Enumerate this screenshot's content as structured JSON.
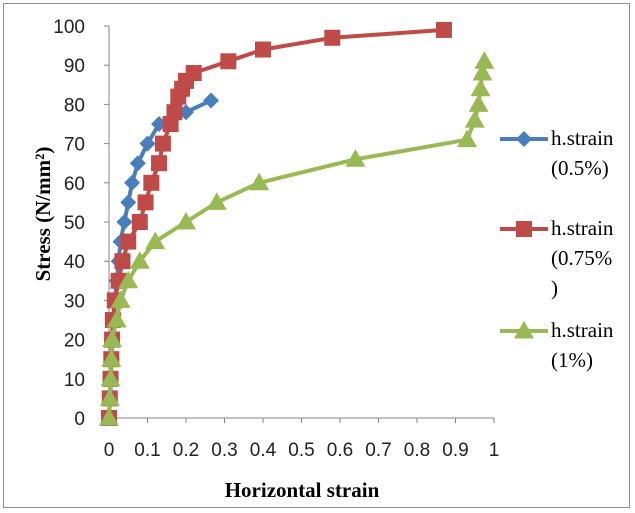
{
  "chart_data": {
    "type": "line",
    "title": "",
    "xlabel": "Horizontal strain",
    "ylabel": "Stress (N/mm²)",
    "xlim": [
      0,
      1
    ],
    "ylim": [
      0,
      100
    ],
    "xticks": [
      "0",
      "0.1",
      "0.2",
      "0.3",
      "0.4",
      "0.5",
      "0.6",
      "0.7",
      "0.8",
      "0.9",
      "1"
    ],
    "yticks": [
      "0",
      "10",
      "20",
      "30",
      "40",
      "50",
      "60",
      "70",
      "80",
      "90",
      "100"
    ],
    "grid": false,
    "legend": "right",
    "series": [
      {
        "name": "h.strain (0.5%)",
        "legend_lines": [
          "h.strain",
          "(0.5%)"
        ],
        "color": "#4a7ebb",
        "marker": "diamond",
        "points": [
          [
            0,
            0
          ],
          [
            0.003,
            5
          ],
          [
            0.005,
            10
          ],
          [
            0.007,
            15
          ],
          [
            0.009,
            20
          ],
          [
            0.012,
            25
          ],
          [
            0.015,
            30
          ],
          [
            0.02,
            35
          ],
          [
            0.025,
            40
          ],
          [
            0.03,
            45
          ],
          [
            0.04,
            50
          ],
          [
            0.05,
            55
          ],
          [
            0.06,
            60
          ],
          [
            0.075,
            65
          ],
          [
            0.1,
            70
          ],
          [
            0.13,
            75
          ],
          [
            0.2,
            78
          ],
          [
            0.265,
            81
          ]
        ]
      },
      {
        "name": "h.strain (0.75%)",
        "legend_lines": [
          "h.strain",
          "(0.75%",
          ")"
        ],
        "color": "#be4b48",
        "marker": "square",
        "points": [
          [
            0,
            0
          ],
          [
            0.002,
            5
          ],
          [
            0.004,
            10
          ],
          [
            0.006,
            15
          ],
          [
            0.008,
            20
          ],
          [
            0.01,
            25
          ],
          [
            0.015,
            30
          ],
          [
            0.025,
            35
          ],
          [
            0.035,
            40
          ],
          [
            0.05,
            45
          ],
          [
            0.08,
            50
          ],
          [
            0.095,
            55
          ],
          [
            0.11,
            60
          ],
          [
            0.13,
            65
          ],
          [
            0.14,
            70
          ],
          [
            0.16,
            75
          ],
          [
            0.17,
            78
          ],
          [
            0.18,
            82
          ],
          [
            0.19,
            84
          ],
          [
            0.2,
            86
          ],
          [
            0.22,
            88
          ],
          [
            0.31,
            91
          ],
          [
            0.4,
            94
          ],
          [
            0.58,
            97
          ],
          [
            0.87,
            99
          ]
        ]
      },
      {
        "name": "h.strain (1%)",
        "legend_lines": [
          "h.strain",
          "(1%)"
        ],
        "color": "#98b954",
        "marker": "triangle",
        "points": [
          [
            0,
            0
          ],
          [
            0.002,
            5
          ],
          [
            0.004,
            10
          ],
          [
            0.006,
            15
          ],
          [
            0.008,
            20
          ],
          [
            0.02,
            25
          ],
          [
            0.03,
            30
          ],
          [
            0.05,
            35
          ],
          [
            0.08,
            40
          ],
          [
            0.12,
            45
          ],
          [
            0.2,
            50
          ],
          [
            0.28,
            55
          ],
          [
            0.39,
            60
          ],
          [
            0.64,
            66
          ],
          [
            0.93,
            71
          ],
          [
            0.95,
            76
          ],
          [
            0.96,
            80
          ],
          [
            0.965,
            84
          ],
          [
            0.97,
            88
          ],
          [
            0.975,
            91
          ]
        ]
      }
    ]
  }
}
